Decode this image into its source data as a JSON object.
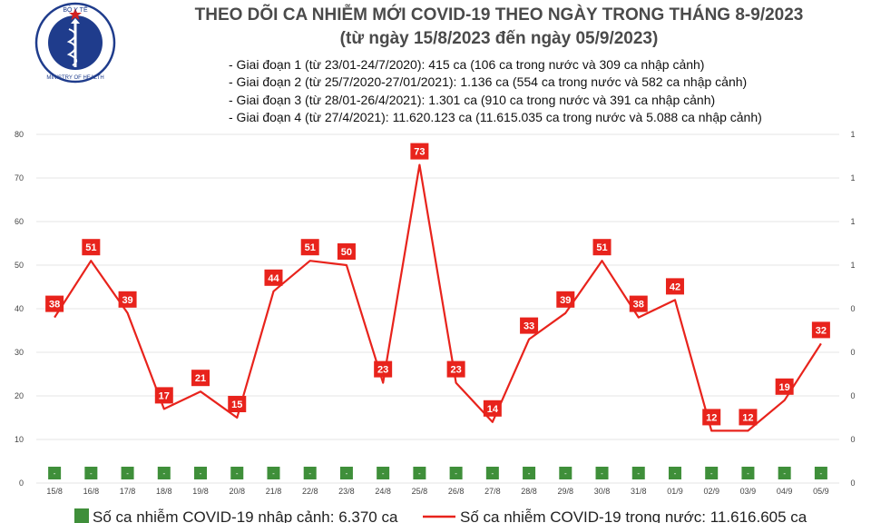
{
  "header": {
    "title_line1": "THEO DÕI CA NHIỄM MỚI COVID-19 THEO NGÀY TRONG THÁNG 8-9/2023",
    "title_line2": "(từ ngày 15/8/2023 đến ngày 05/9/2023)",
    "logo_text_top": "BỘ Y TẾ",
    "logo_text_bottom": "MINISTRY OF HEALTH",
    "notes": [
      "- Giai đoạn 1 (từ 23/01-24/7/2020): 415 ca (106 ca trong nước và 309 ca nhập cảnh)",
      "- Giai đoạn 2 (từ 25/7/2020-27/01/2021): 1.136 ca (554 ca trong nước và 582 ca nhập cảnh)",
      "- Giai đoạn 3 (từ 28/01-26/4/2021): 1.301 ca (910 ca trong nước và 391 ca nhập cảnh)",
      "- Giai đoạn 4 (từ 27/4/2021): 11.620.123 ca (11.615.035 ca trong nước và 5.088 ca nhập cảnh)"
    ]
  },
  "chart_data": {
    "type": "line",
    "categories": [
      "15/8",
      "16/8",
      "17/8",
      "18/8",
      "19/8",
      "20/8",
      "21/8",
      "22/8",
      "23/8",
      "24/8",
      "25/8",
      "26/8",
      "27/8",
      "28/8",
      "29/8",
      "30/8",
      "31/8",
      "01/9",
      "02/9",
      "03/9",
      "04/9",
      "05/9"
    ],
    "series": [
      {
        "name": "Số ca nhiễm COVID-19 nhập cảnh: 6.370 ca",
        "type": "bar",
        "values": [
          0,
          0,
          0,
          0,
          0,
          0,
          0,
          0,
          0,
          0,
          0,
          0,
          0,
          0,
          0,
          0,
          0,
          0,
          0,
          0,
          0,
          0
        ],
        "bar_label": "-",
        "color": "#3f8f3a"
      },
      {
        "name": "Số ca nhiễm COVID-19 trong nước: 11.616.605 ca",
        "type": "line",
        "values": [
          38,
          51,
          39,
          17,
          21,
          15,
          44,
          51,
          50,
          23,
          73,
          23,
          14,
          33,
          39,
          51,
          38,
          42,
          12,
          12,
          19,
          32
        ],
        "color": "#e8231c"
      }
    ],
    "ylim": [
      0,
      80
    ],
    "yticks": [
      0,
      10,
      20,
      30,
      40,
      50,
      60,
      70,
      80
    ],
    "y2ticks": [
      "0",
      "0",
      "0",
      "0",
      "0",
      "1",
      "1",
      "1",
      "1"
    ],
    "legend_position": "bottom"
  }
}
